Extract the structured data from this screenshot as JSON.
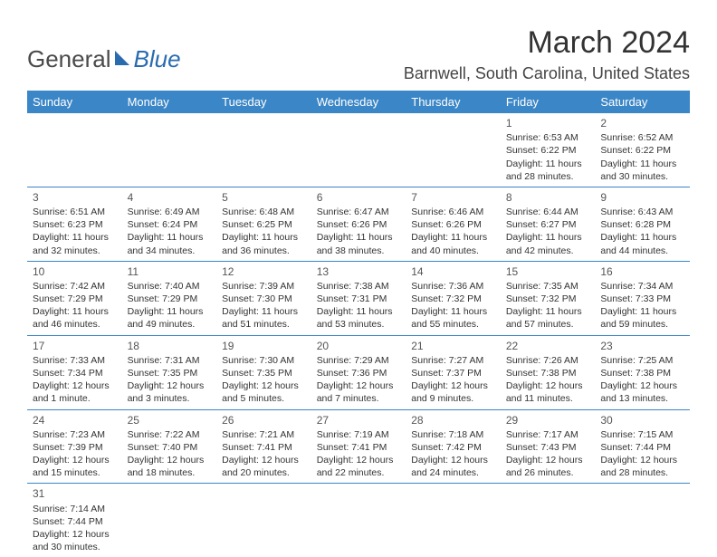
{
  "logo": {
    "general": "General",
    "blue": "Blue"
  },
  "header": {
    "month": "March 2024",
    "location": "Barnwell, South Carolina, United States"
  },
  "colors": {
    "header_bg": "#3b86c6",
    "header_fg": "#ffffff",
    "text": "#333333",
    "rule": "#3b86c6"
  },
  "typography": {
    "month_fontsize": 34,
    "location_fontsize": 18,
    "dayhead_fontsize": 13,
    "cell_fontsize": 10.5
  },
  "day_headers": [
    "Sunday",
    "Monday",
    "Tuesday",
    "Wednesday",
    "Thursday",
    "Friday",
    "Saturday"
  ],
  "weeks": [
    [
      null,
      null,
      null,
      null,
      null,
      {
        "d": "1",
        "sr": "6:53 AM",
        "ss": "6:22 PM",
        "dl": "11 hours and 28 minutes."
      },
      {
        "d": "2",
        "sr": "6:52 AM",
        "ss": "6:22 PM",
        "dl": "11 hours and 30 minutes."
      }
    ],
    [
      {
        "d": "3",
        "sr": "6:51 AM",
        "ss": "6:23 PM",
        "dl": "11 hours and 32 minutes."
      },
      {
        "d": "4",
        "sr": "6:49 AM",
        "ss": "6:24 PM",
        "dl": "11 hours and 34 minutes."
      },
      {
        "d": "5",
        "sr": "6:48 AM",
        "ss": "6:25 PM",
        "dl": "11 hours and 36 minutes."
      },
      {
        "d": "6",
        "sr": "6:47 AM",
        "ss": "6:26 PM",
        "dl": "11 hours and 38 minutes."
      },
      {
        "d": "7",
        "sr": "6:46 AM",
        "ss": "6:26 PM",
        "dl": "11 hours and 40 minutes."
      },
      {
        "d": "8",
        "sr": "6:44 AM",
        "ss": "6:27 PM",
        "dl": "11 hours and 42 minutes."
      },
      {
        "d": "9",
        "sr": "6:43 AM",
        "ss": "6:28 PM",
        "dl": "11 hours and 44 minutes."
      }
    ],
    [
      {
        "d": "10",
        "sr": "7:42 AM",
        "ss": "7:29 PM",
        "dl": "11 hours and 46 minutes."
      },
      {
        "d": "11",
        "sr": "7:40 AM",
        "ss": "7:29 PM",
        "dl": "11 hours and 49 minutes."
      },
      {
        "d": "12",
        "sr": "7:39 AM",
        "ss": "7:30 PM",
        "dl": "11 hours and 51 minutes."
      },
      {
        "d": "13",
        "sr": "7:38 AM",
        "ss": "7:31 PM",
        "dl": "11 hours and 53 minutes."
      },
      {
        "d": "14",
        "sr": "7:36 AM",
        "ss": "7:32 PM",
        "dl": "11 hours and 55 minutes."
      },
      {
        "d": "15",
        "sr": "7:35 AM",
        "ss": "7:32 PM",
        "dl": "11 hours and 57 minutes."
      },
      {
        "d": "16",
        "sr": "7:34 AM",
        "ss": "7:33 PM",
        "dl": "11 hours and 59 minutes."
      }
    ],
    [
      {
        "d": "17",
        "sr": "7:33 AM",
        "ss": "7:34 PM",
        "dl": "12 hours and 1 minute."
      },
      {
        "d": "18",
        "sr": "7:31 AM",
        "ss": "7:35 PM",
        "dl": "12 hours and 3 minutes."
      },
      {
        "d": "19",
        "sr": "7:30 AM",
        "ss": "7:35 PM",
        "dl": "12 hours and 5 minutes."
      },
      {
        "d": "20",
        "sr": "7:29 AM",
        "ss": "7:36 PM",
        "dl": "12 hours and 7 minutes."
      },
      {
        "d": "21",
        "sr": "7:27 AM",
        "ss": "7:37 PM",
        "dl": "12 hours and 9 minutes."
      },
      {
        "d": "22",
        "sr": "7:26 AM",
        "ss": "7:38 PM",
        "dl": "12 hours and 11 minutes."
      },
      {
        "d": "23",
        "sr": "7:25 AM",
        "ss": "7:38 PM",
        "dl": "12 hours and 13 minutes."
      }
    ],
    [
      {
        "d": "24",
        "sr": "7:23 AM",
        "ss": "7:39 PM",
        "dl": "12 hours and 15 minutes."
      },
      {
        "d": "25",
        "sr": "7:22 AM",
        "ss": "7:40 PM",
        "dl": "12 hours and 18 minutes."
      },
      {
        "d": "26",
        "sr": "7:21 AM",
        "ss": "7:41 PM",
        "dl": "12 hours and 20 minutes."
      },
      {
        "d": "27",
        "sr": "7:19 AM",
        "ss": "7:41 PM",
        "dl": "12 hours and 22 minutes."
      },
      {
        "d": "28",
        "sr": "7:18 AM",
        "ss": "7:42 PM",
        "dl": "12 hours and 24 minutes."
      },
      {
        "d": "29",
        "sr": "7:17 AM",
        "ss": "7:43 PM",
        "dl": "12 hours and 26 minutes."
      },
      {
        "d": "30",
        "sr": "7:15 AM",
        "ss": "7:44 PM",
        "dl": "12 hours and 28 minutes."
      }
    ],
    [
      {
        "d": "31",
        "sr": "7:14 AM",
        "ss": "7:44 PM",
        "dl": "12 hours and 30 minutes."
      },
      null,
      null,
      null,
      null,
      null,
      null
    ]
  ],
  "labels": {
    "sunrise": "Sunrise:",
    "sunset": "Sunset:",
    "daylight": "Daylight:"
  }
}
